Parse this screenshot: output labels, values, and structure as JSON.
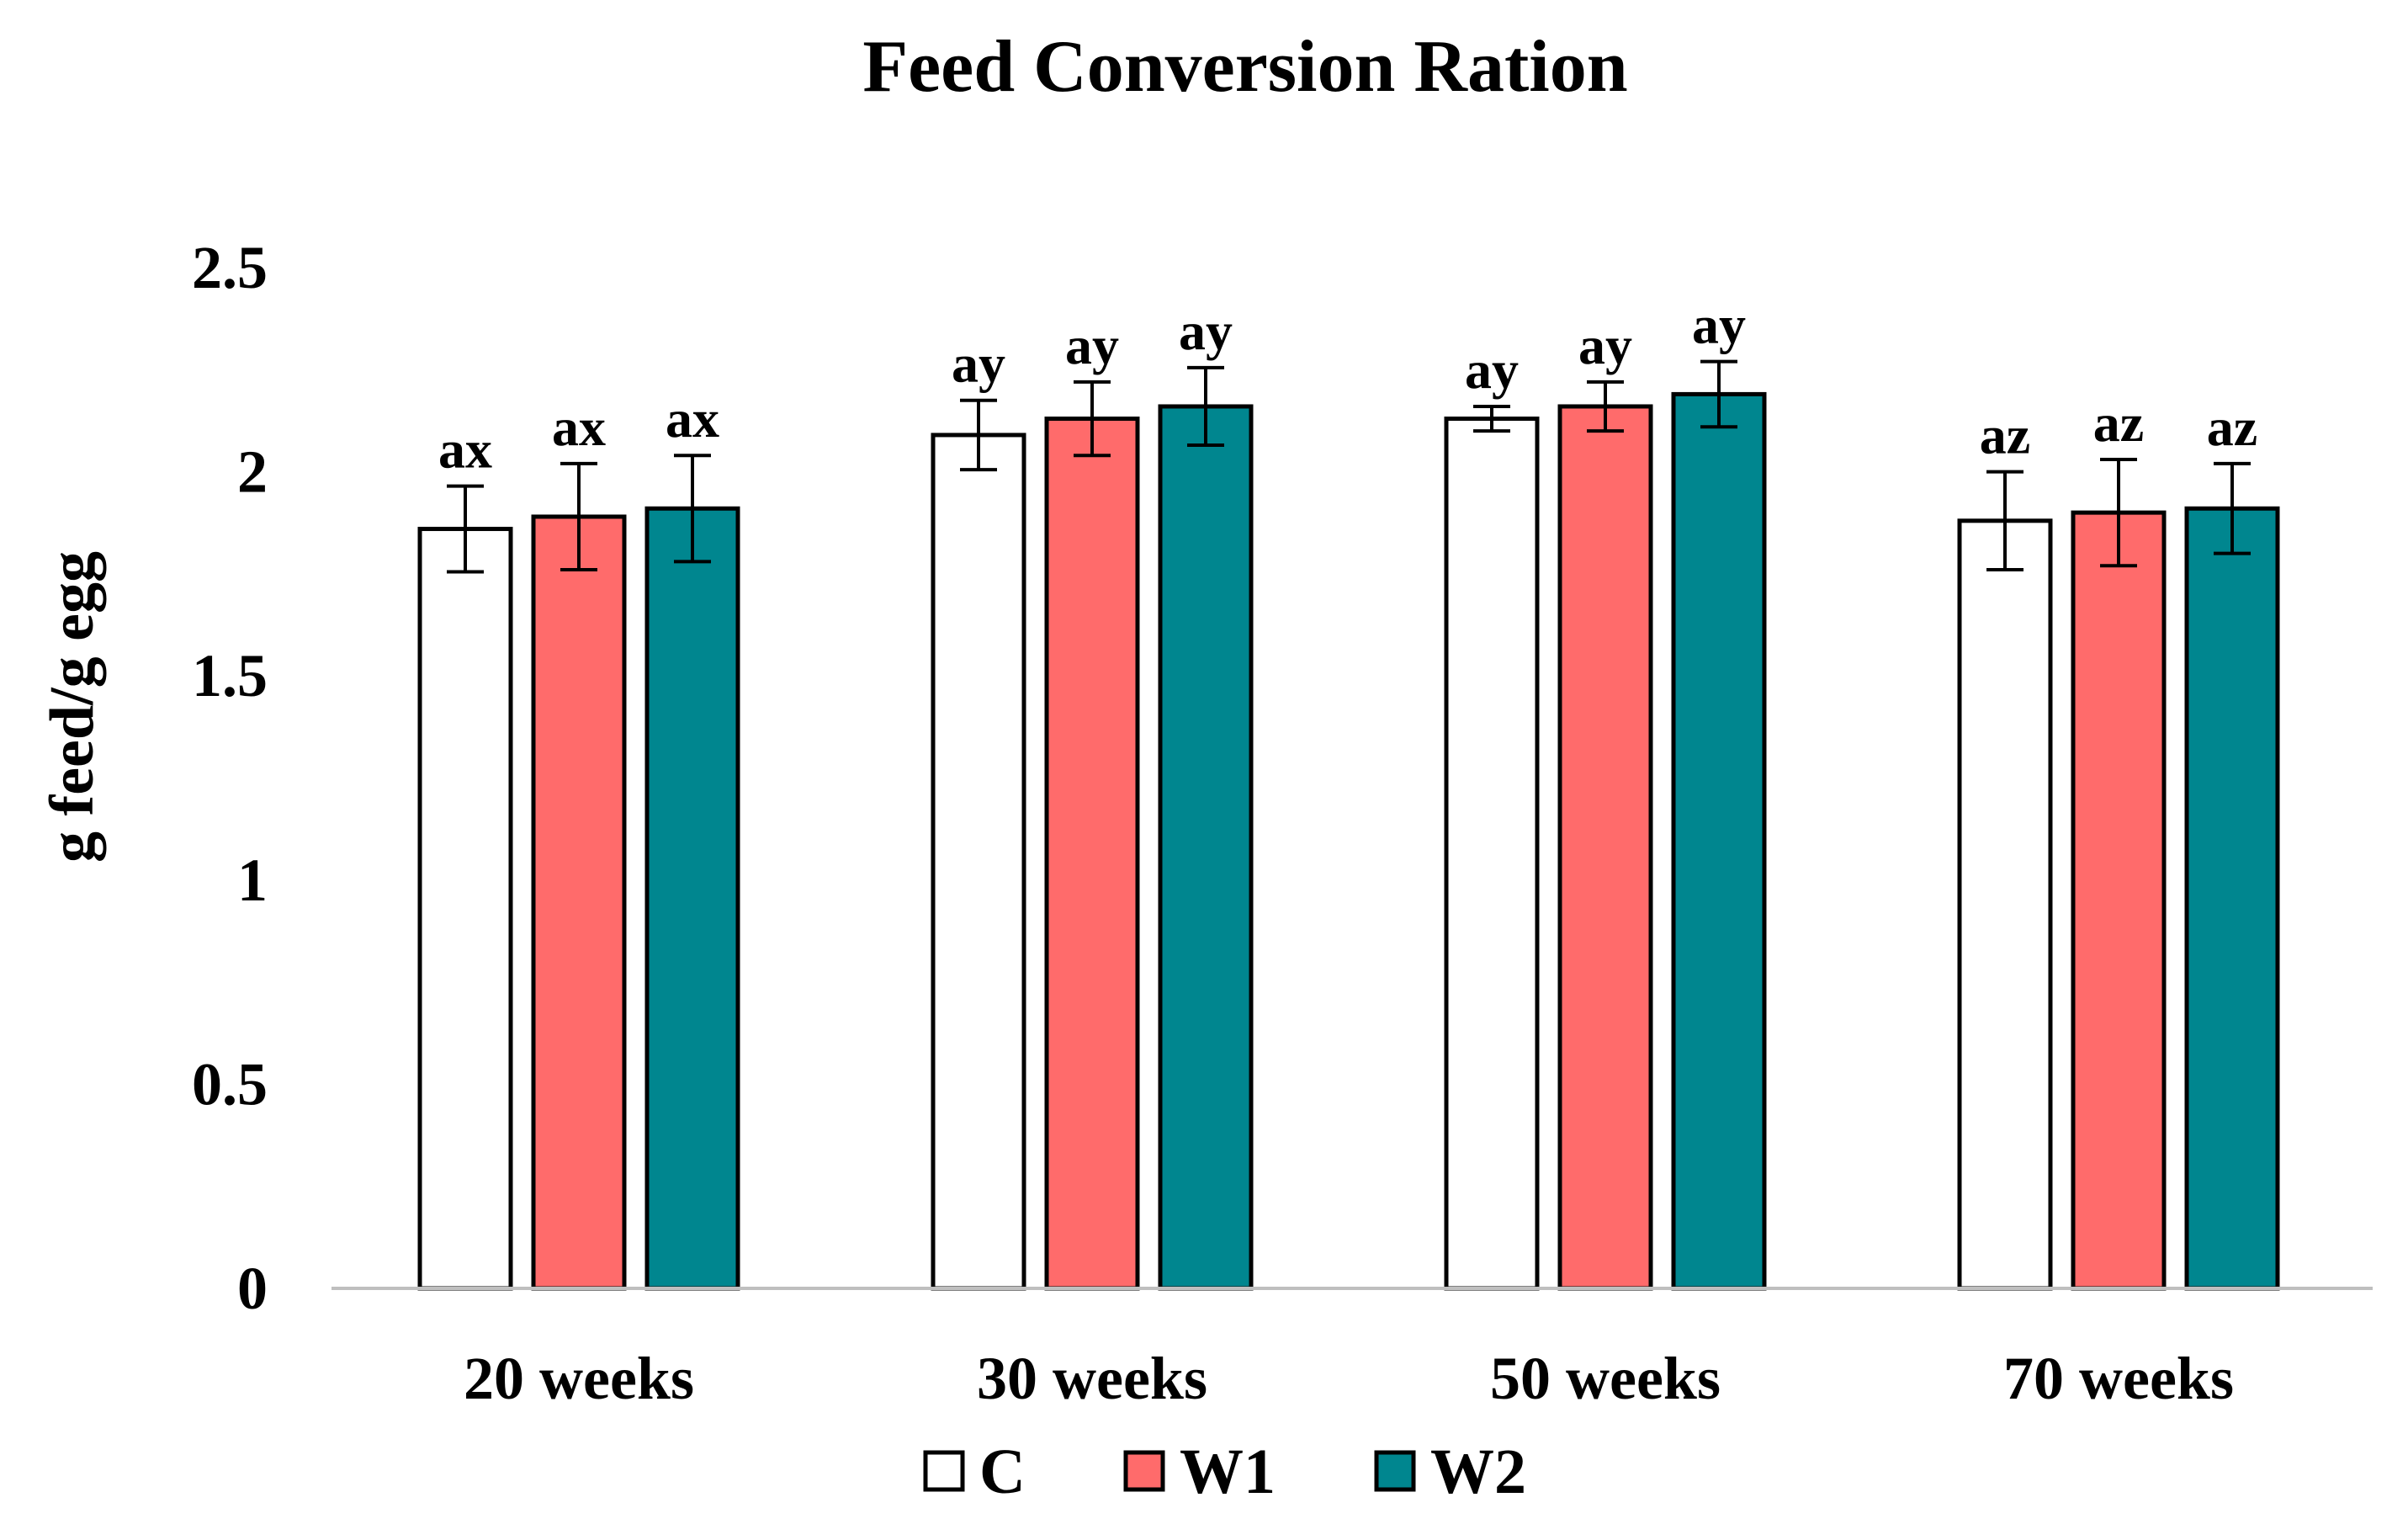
{
  "chart_data": {
    "type": "bar",
    "title": "Feed Conversion Ration",
    "xlabel": "",
    "ylabel": "g feed/g egg",
    "ylim": [
      0,
      2.5
    ],
    "yticks": [
      0,
      0.5,
      1,
      1.5,
      2,
      2.5
    ],
    "ytick_labels": [
      "0",
      "0.5",
      "1",
      "1.5",
      "2",
      "2.5"
    ],
    "grid": false,
    "legend_position": "bottom-center",
    "categories": [
      "20 weeks",
      "30 weeks",
      "50 weeks",
      "70 weeks"
    ],
    "series": [
      {
        "name": "C",
        "color": "#FFFFFF",
        "values": [
          1.86,
          2.09,
          2.13,
          1.88
        ],
        "errors": [
          0.105,
          0.085,
          0.03,
          0.12
        ],
        "labels": [
          "ax",
          "ay",
          "ay",
          "az"
        ]
      },
      {
        "name": "W1",
        "color": "#FF6B6B",
        "values": [
          1.89,
          2.13,
          2.16,
          1.9
        ],
        "errors": [
          0.13,
          0.09,
          0.06,
          0.13
        ],
        "labels": [
          "ax",
          "ay",
          "ay",
          "az"
        ]
      },
      {
        "name": "W2",
        "color": "#00868F",
        "values": [
          1.91,
          2.16,
          2.19,
          1.91
        ],
        "errors": [
          0.13,
          0.095,
          0.08,
          0.11
        ],
        "labels": [
          "ax",
          "ay",
          "ay",
          "az"
        ]
      }
    ]
  }
}
